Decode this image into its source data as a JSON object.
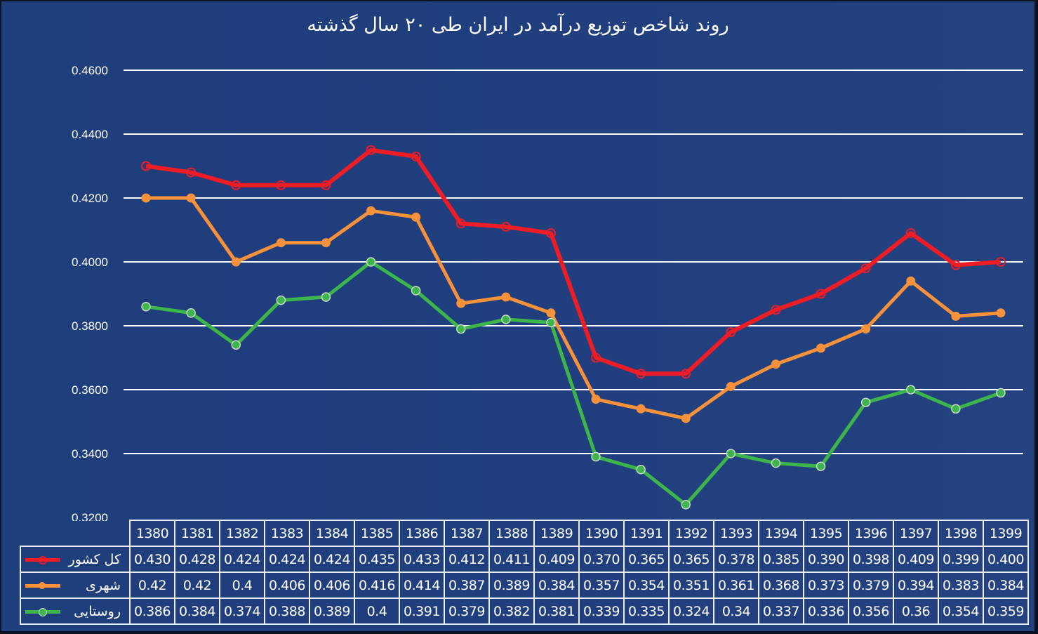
{
  "chart_data": {
    "type": "line",
    "title": "روند شاخص توزیع درآمد در ایران طی ۲۰ سال گذشته",
    "xlabel": "",
    "ylabel": "",
    "ylim": [
      0.32,
      0.46
    ],
    "yticks": [
      "0.4600",
      "0.4400",
      "0.4200",
      "0.4000",
      "0.3800",
      "0.3600",
      "0.3400",
      "0.3200"
    ],
    "grid": true,
    "legend_position": "data-table-left",
    "categories": [
      "1380",
      "1381",
      "1382",
      "1383",
      "1384",
      "1385",
      "1386",
      "1387",
      "1388",
      "1389",
      "1390",
      "1391",
      "1392",
      "1393",
      "1394",
      "1395",
      "1396",
      "1397",
      "1398",
      "1399"
    ],
    "series": [
      {
        "name": "کل کشور",
        "color": "#ee1c25",
        "marker": "hollow-circle",
        "values": [
          0.43,
          0.428,
          0.424,
          0.424,
          0.424,
          0.435,
          0.433,
          0.412,
          0.411,
          0.409,
          0.37,
          0.365,
          0.365,
          0.378,
          0.385,
          0.39,
          0.398,
          0.409,
          0.399,
          0.4
        ],
        "labels": [
          "0.430",
          "0.428",
          "0.424",
          "0.424",
          "0.424",
          "0.435",
          "0.433",
          "0.412",
          "0.411",
          "0.409",
          "0.370",
          "0.365",
          "0.365",
          "0.378",
          "0.385",
          "0.390",
          "0.398",
          "0.409",
          "0.399",
          "0.400"
        ]
      },
      {
        "name": "شهری",
        "color": "#f7923a",
        "marker": "filled-circle",
        "values": [
          0.42,
          0.42,
          0.4,
          0.406,
          0.406,
          0.416,
          0.414,
          0.387,
          0.389,
          0.384,
          0.357,
          0.354,
          0.351,
          0.361,
          0.368,
          0.373,
          0.379,
          0.394,
          0.383,
          0.384
        ],
        "labels": [
          "0.42",
          "0.42",
          "0.4",
          "0.406",
          "0.406",
          "0.416",
          "0.414",
          "0.387",
          "0.389",
          "0.384",
          "0.357",
          "0.354",
          "0.351",
          "0.361",
          "0.368",
          "0.373",
          "0.379",
          "0.394",
          "0.383",
          "0.384"
        ]
      },
      {
        "name": "روستایی",
        "color": "#3cb54a",
        "marker": "filled-circle-light-outline",
        "values": [
          0.386,
          0.384,
          0.374,
          0.388,
          0.389,
          0.4,
          0.391,
          0.379,
          0.382,
          0.381,
          0.339,
          0.335,
          0.324,
          0.34,
          0.337,
          0.336,
          0.356,
          0.36,
          0.354,
          0.359
        ],
        "labels": [
          "0.386",
          "0.384",
          "0.374",
          "0.388",
          "0.389",
          "0.4",
          "0.391",
          "0.379",
          "0.382",
          "0.381",
          "0.339",
          "0.335",
          "0.324",
          "0.34",
          "0.337",
          "0.336",
          "0.356",
          "0.36",
          "0.354",
          "0.359"
        ]
      }
    ]
  },
  "colors": {
    "background": "#203f7d",
    "grid": "#ffffff",
    "text": "#ffffff"
  }
}
